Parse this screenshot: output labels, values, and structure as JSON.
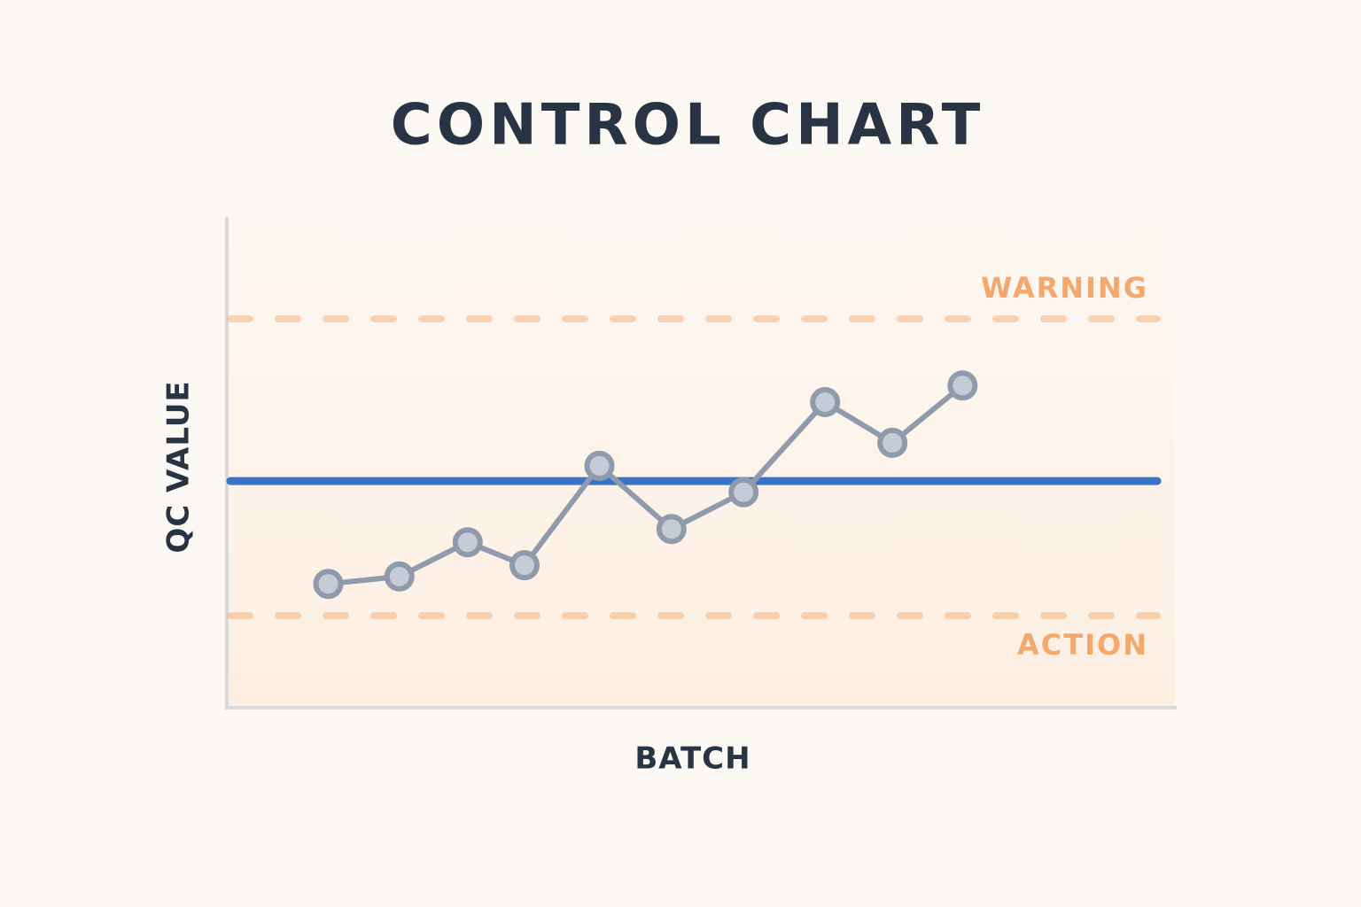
{
  "chart_data": {
    "type": "line",
    "title": "CONTROL CHART",
    "x_label": "BATCH",
    "y_label": "QC VALUE",
    "x": [
      10.7,
      18.2,
      25.4,
      31.4,
      39.3,
      46.9,
      54.5,
      63.1,
      70.2,
      77.6
    ],
    "values": [
      25.1,
      26.6,
      33.6,
      28.9,
      49.2,
      36.3,
      43.8,
      62.2,
      53.9,
      65.6
    ],
    "color": "#8f9bab",
    "marker_color": "#c5ccd6",
    "xlim": [
      0,
      100
    ],
    "ylim": [
      0,
      100
    ],
    "center_line": {
      "value": 46.1,
      "color": "#3b73c9"
    },
    "warning_line": {
      "label": "WARNING",
      "value": 79.2,
      "color": "#f4a86b"
    },
    "action_line": {
      "label": "ACTION",
      "value": 18.6,
      "color": "#f4a86b"
    }
  }
}
